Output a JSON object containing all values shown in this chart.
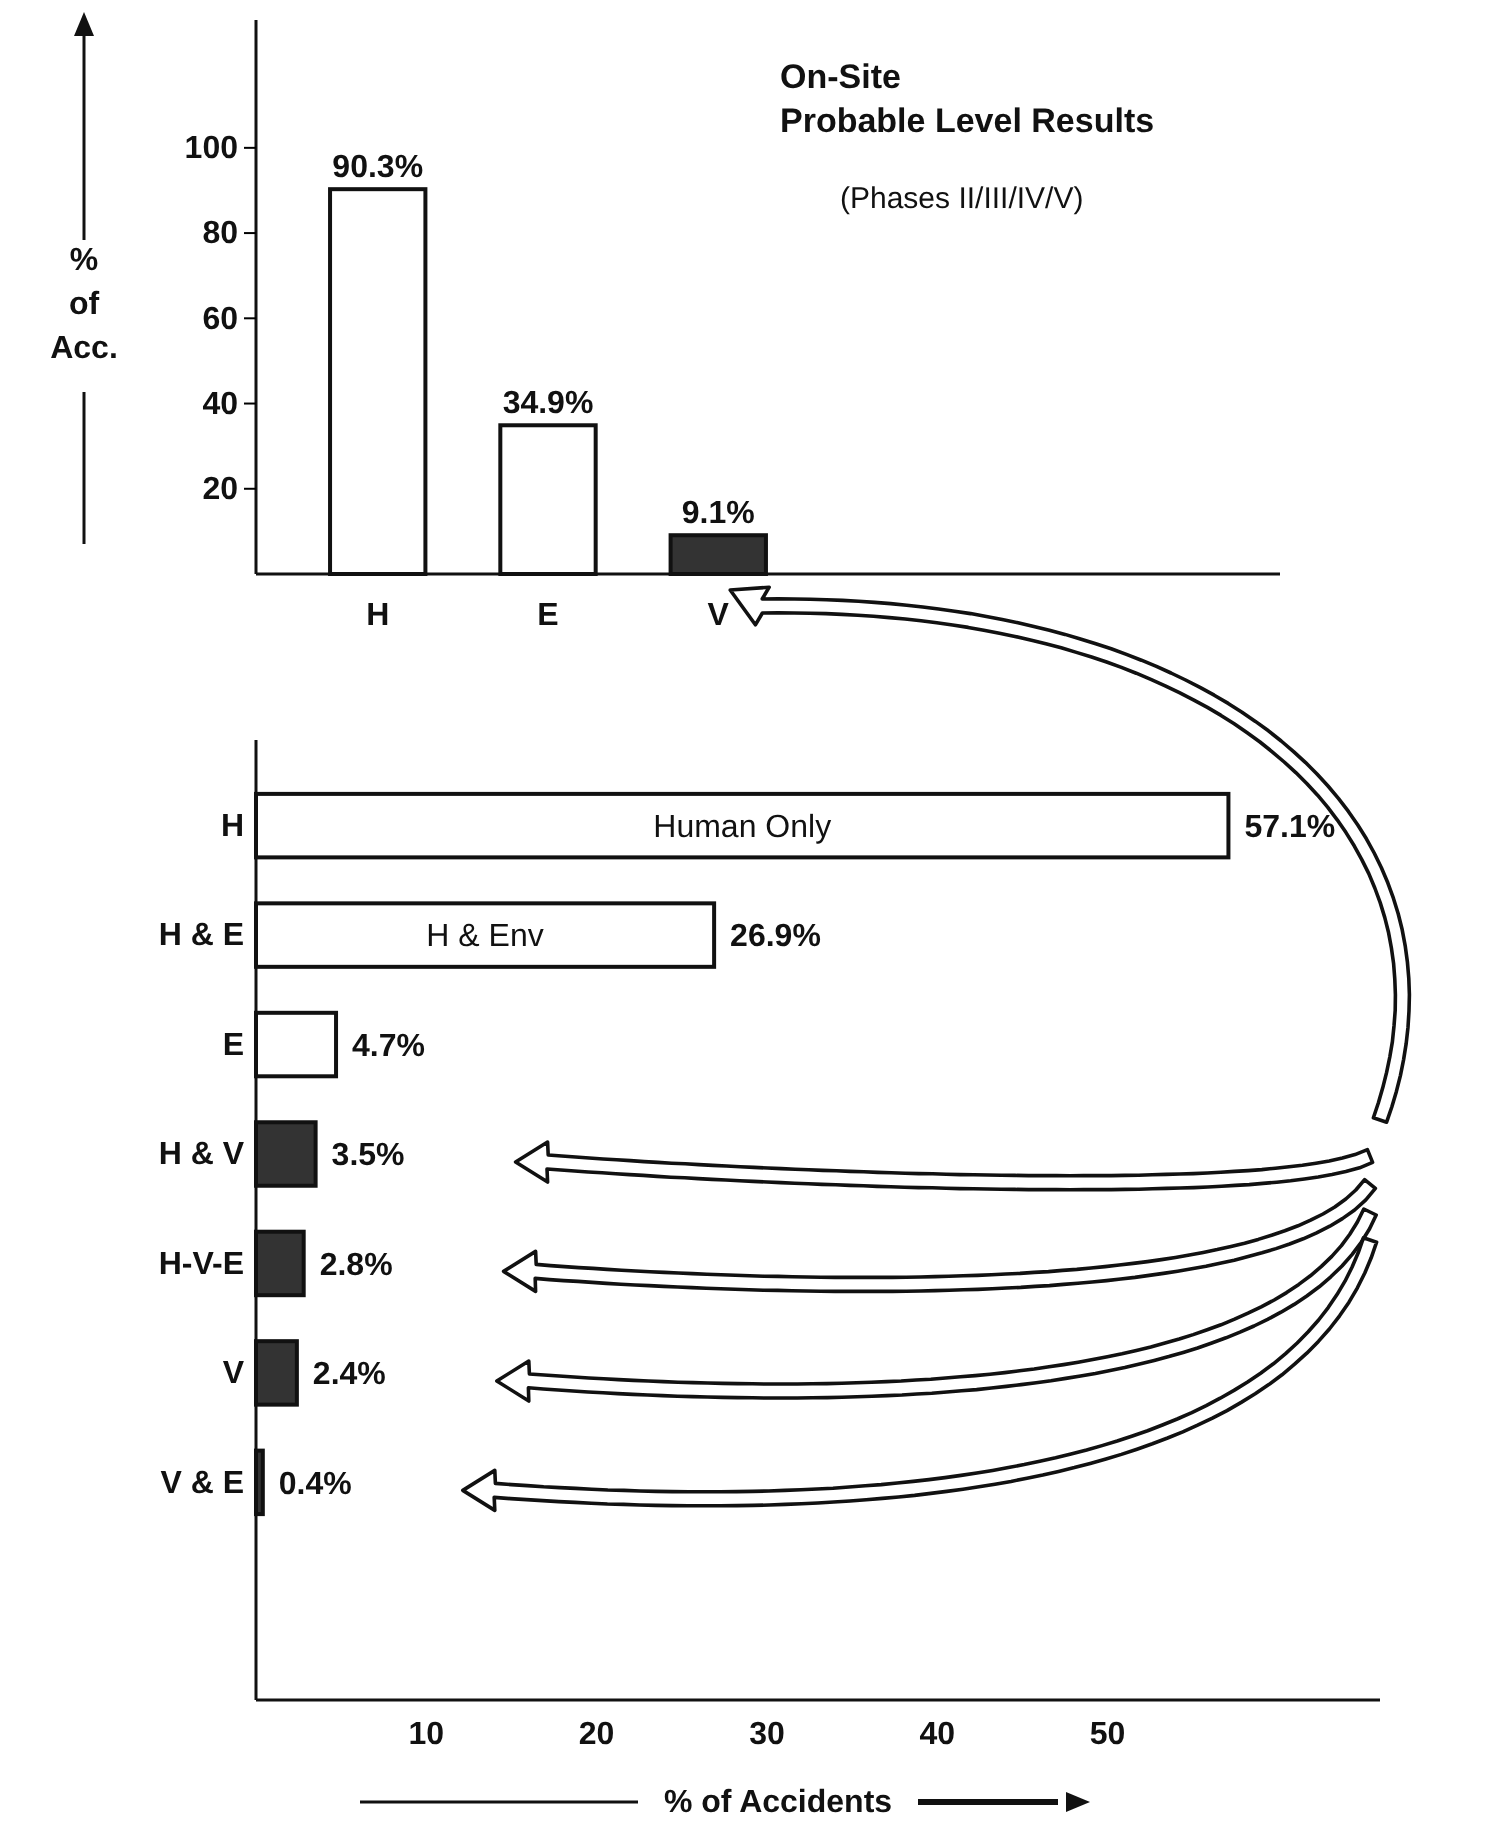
{
  "chart_data": [
    {
      "type": "bar",
      "title": "On-Site Probable Level Results",
      "annotations": [
        "(Phases II/III/IV/V)"
      ],
      "ylabel": "% of Acc.",
      "categories": [
        "H",
        "E",
        "V"
      ],
      "values": [
        90.3,
        34.9,
        9.1
      ],
      "value_labels": [
        "90.3%",
        "34.9%",
        "9.1%"
      ],
      "colors": [
        "#ffffff",
        "#ffffff",
        "#333333"
      ],
      "ylim": [
        0,
        130
      ],
      "yticks": [
        20,
        40,
        60,
        80,
        100
      ]
    },
    {
      "type": "bar",
      "orientation": "horizontal",
      "xlabel": "% of Accidents",
      "categories": [
        "H",
        "H & E",
        "E",
        "H & V",
        "H-V-E",
        "V",
        "V & E"
      ],
      "values": [
        57.1,
        26.9,
        4.7,
        3.5,
        2.8,
        2.4,
        0.4
      ],
      "value_labels": [
        "57.1%",
        "26.9%",
        "4.7%",
        "3.5%",
        "2.8%",
        "2.4%",
        "0.4%"
      ],
      "colors": [
        "#ffffff",
        "#ffffff",
        "#ffffff",
        "#333333",
        "#333333",
        "#333333",
        "#333333"
      ],
      "xlim": [
        0,
        66
      ],
      "xticks": [
        10,
        20,
        30,
        40,
        50
      ],
      "annotations": [
        "Human Only",
        "H & Env"
      ]
    }
  ]
}
